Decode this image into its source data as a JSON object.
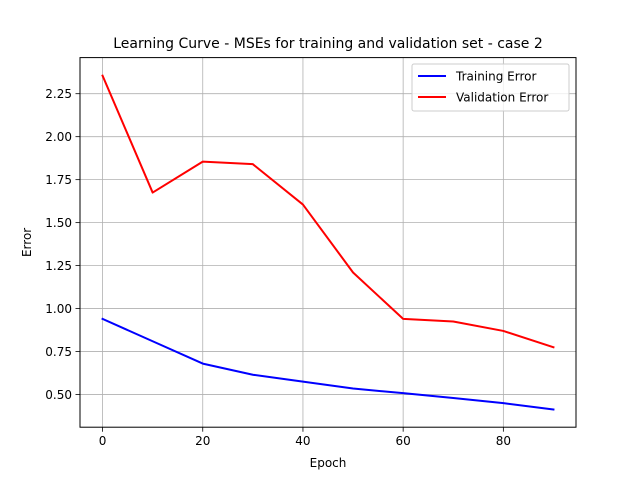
{
  "chart_data": {
    "type": "line",
    "title": "Learning Curve - MSEs for training and validation set - case 2",
    "xlabel": "Epoch",
    "ylabel": "Error",
    "x": [
      0,
      10,
      20,
      30,
      40,
      50,
      60,
      70,
      80,
      90
    ],
    "series": [
      {
        "name": "Training Error",
        "color": "#0000ff",
        "values": [
          0.94,
          0.81,
          0.68,
          0.615,
          0.575,
          0.535,
          0.508,
          0.48,
          0.45,
          0.413
        ]
      },
      {
        "name": "Validation Error",
        "color": "#ff0000",
        "values": [
          2.355,
          1.675,
          1.855,
          1.84,
          1.605,
          1.21,
          0.94,
          0.925,
          0.87,
          0.775
        ]
      }
    ],
    "xlim": [
      -4.5,
      94.5
    ],
    "ylim": [
      0.31,
      2.46
    ],
    "xticks": [
      0,
      20,
      40,
      60,
      80
    ],
    "xtick_labels": [
      "0",
      "20",
      "40",
      "60",
      "80"
    ],
    "yticks": [
      0.5,
      0.75,
      1.0,
      1.25,
      1.5,
      1.75,
      2.0,
      2.25
    ],
    "ytick_labels": [
      "0.50",
      "0.75",
      "1.00",
      "1.25",
      "1.50",
      "1.75",
      "2.00",
      "2.25"
    ],
    "grid": true,
    "legend_position": "upper right"
  }
}
